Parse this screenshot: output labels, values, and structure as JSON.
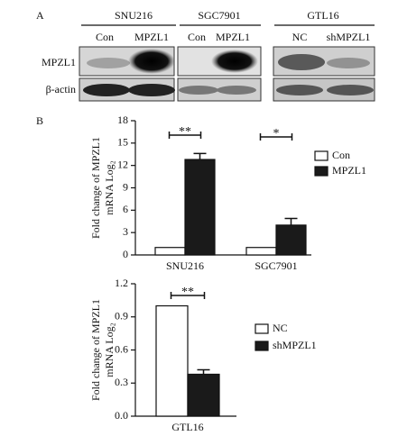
{
  "blot": {
    "panel_label": "A",
    "cell_lines": [
      "SNU216",
      "SGC7901",
      "GTL16"
    ],
    "lanes": [
      "Con",
      "MPZL1",
      "Con",
      "MPZL1",
      "NC",
      "shMPZL1"
    ],
    "rows": [
      "MPZL1",
      "β-actin"
    ]
  },
  "panel_b_label": "B",
  "chart_data": [
    {
      "type": "bar",
      "ylabel": [
        "Fold change of MPZL1",
        "mRNA Log₂"
      ],
      "categories": [
        "SNU216",
        "SGC7901"
      ],
      "series": [
        {
          "name": "Con",
          "color": "#ffffff",
          "values": [
            1,
            1
          ]
        },
        {
          "name": "MPZL1",
          "color": "#1a1a1a",
          "values": [
            12.8,
            4.0
          ],
          "errors": [
            0.8,
            0.9
          ]
        }
      ],
      "ylim": [
        0,
        18
      ],
      "yticks": [
        0,
        3,
        6,
        9,
        12,
        15,
        18
      ],
      "annotations": [
        {
          "text": "**",
          "category": 0
        },
        {
          "text": "*",
          "category": 1
        }
      ]
    },
    {
      "type": "bar",
      "ylabel": [
        "Fold change of MPZL1",
        "mRNA Log₂"
      ],
      "categories": [
        "GTL16"
      ],
      "series": [
        {
          "name": "NC",
          "color": "#ffffff",
          "values": [
            1.0
          ]
        },
        {
          "name": "shMPZL1",
          "color": "#1a1a1a",
          "values": [
            0.38
          ],
          "errors": [
            0.04
          ]
        }
      ],
      "ylim": [
        0,
        1.2
      ],
      "yticks": [
        {
          "value": 0,
          "label": "0.0"
        },
        0.3,
        0.6,
        0.9,
        1.2
      ],
      "annotations": [
        {
          "text": "**",
          "category": 0
        }
      ]
    }
  ]
}
